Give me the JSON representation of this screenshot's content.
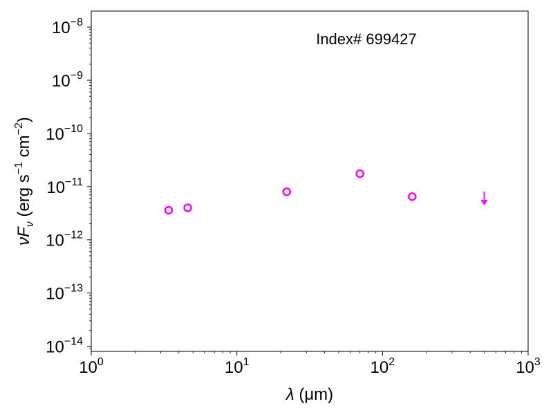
{
  "chart_data": {
    "type": "scatter",
    "annotation": "Index# 699427",
    "xscale": "log",
    "yscale": "log",
    "xlim": [
      1,
      1000
    ],
    "ylim": [
      8e-15,
      2e-08
    ],
    "x_ticks": [
      {
        "value": 1,
        "base": "10",
        "exp": "0"
      },
      {
        "value": 10,
        "base": "10",
        "exp": "1"
      },
      {
        "value": 100,
        "base": "10",
        "exp": "2"
      },
      {
        "value": 1000,
        "base": "10",
        "exp": "3"
      }
    ],
    "y_ticks": [
      {
        "value": 1e-14,
        "base": "10",
        "exp": "−14"
      },
      {
        "value": 1e-13,
        "base": "10",
        "exp": "−13"
      },
      {
        "value": 1e-12,
        "base": "10",
        "exp": "−12"
      },
      {
        "value": 1e-11,
        "base": "10",
        "exp": "−11"
      },
      {
        "value": 1e-10,
        "base": "10",
        "exp": "−10"
      },
      {
        "value": 1e-09,
        "base": "10",
        "exp": "−9"
      },
      {
        "value": 1e-08,
        "base": "10",
        "exp": "−8"
      }
    ],
    "xlabel": {
      "sym": "λ",
      "rest": " (μm)"
    },
    "ylabel": {
      "pre": "νF",
      "sub": "ν",
      "mid": " (erg s",
      "sup1": "−1",
      "mid2": " cm",
      "sup2": "−2",
      "post": ")"
    },
    "marker_color": "#ff00ff",
    "points": [
      {
        "x": 3.4,
        "y": 3.6e-12
      },
      {
        "x": 4.6,
        "y": 4e-12
      },
      {
        "x": 22,
        "y": 8e-12
      },
      {
        "x": 70,
        "y": 1.75e-11
      },
      {
        "x": 160,
        "y": 6.5e-12
      }
    ],
    "upper_limits": [
      {
        "x": 500,
        "y": 5e-12
      }
    ]
  }
}
